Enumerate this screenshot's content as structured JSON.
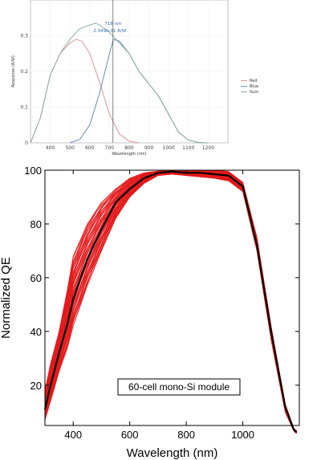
{
  "chart_data": [
    {
      "type": "line",
      "title": "",
      "xlabel": "Wavelength (nm)",
      "ylabel": "Response (A/W)",
      "xlim": [
        300,
        1300
      ],
      "ylim": [
        0,
        0.4
      ],
      "grid": true,
      "legend_position": "right",
      "xticks": [
        400,
        500,
        600,
        700,
        800,
        900,
        1000,
        1100,
        1200
      ],
      "yticks": [
        0,
        0.1,
        0.2,
        0.3
      ],
      "cursor": {
        "x": 718,
        "label_line1": "718 nm",
        "label_line2": "2.949e-01 A/W"
      },
      "colors": {
        "Red": "#d98c8c",
        "Blue": "#5b7fb8",
        "Sum": "#7fa89a"
      },
      "series": [
        {
          "name": "Red",
          "x": [
            300,
            350,
            400,
            450,
            500,
            530,
            560,
            600,
            650,
            700,
            750,
            800,
            850
          ],
          "y": [
            0.0,
            0.07,
            0.19,
            0.25,
            0.28,
            0.29,
            0.285,
            0.25,
            0.17,
            0.08,
            0.025,
            0.005,
            0.0
          ]
        },
        {
          "name": "Blue",
          "x": [
            500,
            550,
            600,
            650,
            700,
            720,
            750,
            800,
            850,
            900,
            950,
            1000,
            1050,
            1100,
            1150,
            1200
          ],
          "y": [
            0.0,
            0.01,
            0.05,
            0.14,
            0.25,
            0.29,
            0.285,
            0.25,
            0.2,
            0.165,
            0.13,
            0.08,
            0.03,
            0.008,
            0.001,
            0.0
          ]
        },
        {
          "name": "Sum",
          "x": [
            300,
            350,
            400,
            450,
            500,
            550,
            600,
            630,
            650,
            700,
            750,
            800,
            850,
            900,
            950,
            1000,
            1050,
            1100,
            1150,
            1200
          ],
          "y": [
            0.0,
            0.07,
            0.19,
            0.25,
            0.29,
            0.32,
            0.33,
            0.335,
            0.33,
            0.31,
            0.28,
            0.25,
            0.2,
            0.165,
            0.13,
            0.08,
            0.03,
            0.008,
            0.001,
            0.0
          ]
        }
      ]
    },
    {
      "type": "line",
      "title": "",
      "xlabel": "Wavelength (nm)",
      "ylabel": "Normalized QE",
      "xlim": [
        300,
        1200
      ],
      "ylim": [
        5,
        100
      ],
      "grid": false,
      "xticks": [
        400,
        600,
        800,
        1000
      ],
      "yticks": [
        20,
        40,
        60,
        80,
        100
      ],
      "annotation": "60-cell mono-Si module",
      "colors": {
        "cells": "#e41a1c",
        "mean": "#000000"
      },
      "envelope": {
        "x": [
          300,
          320,
          350,
          380,
          400,
          450,
          500,
          550,
          600,
          650,
          700,
          750,
          800,
          850,
          900,
          950,
          1000,
          1050,
          1100,
          1150,
          1180,
          1190
        ],
        "lower": [
          7,
          14,
          25,
          34,
          42,
          57,
          70,
          82,
          90,
          95,
          98,
          98.5,
          98,
          97.5,
          97,
          96,
          92,
          70,
          37,
          10,
          3,
          2
        ],
        "upper": [
          18,
          28,
          40,
          56,
          68,
          80,
          88,
          93,
          97,
          99,
          99.7,
          100,
          100,
          100,
          100,
          99.5,
          95.5,
          75,
          42,
          13,
          4,
          3
        ]
      },
      "mean": {
        "x": [
          300,
          320,
          350,
          380,
          400,
          450,
          500,
          550,
          600,
          650,
          700,
          750,
          800,
          850,
          900,
          950,
          1000,
          1050,
          1100,
          1150,
          1180,
          1190
        ],
        "y": [
          11,
          20,
          32,
          43,
          52,
          67,
          78,
          88,
          93,
          97,
          99,
          99.5,
          99,
          99,
          98.5,
          98,
          94,
          72,
          40,
          12,
          3.5,
          2.5
        ]
      }
    }
  ]
}
